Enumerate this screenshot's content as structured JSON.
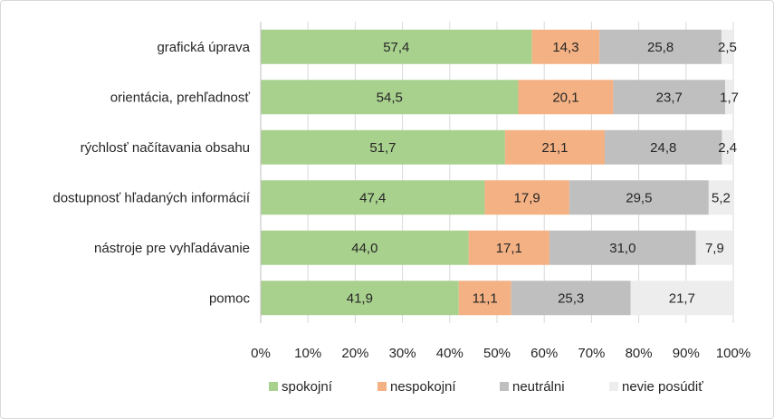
{
  "colors": {
    "spokojni": "#a9d18e",
    "nespokojni": "#f4b183",
    "neutralni": "#bfbfbf",
    "nevie": "#ededed",
    "gridline": "#d9d9d9",
    "axis": "#bfbfbf"
  },
  "chart_data": {
    "type": "bar",
    "orientation": "horizontal",
    "stacked": "percent",
    "categories": [
      "grafická úprava",
      "orientácia, prehľadnosť",
      "rýchlosť načítavania obsahu",
      "dostupnosť hľadaných informácií",
      "nástroje pre vyhľadávanie",
      "pomoc"
    ],
    "series": [
      {
        "name": "spokojní",
        "values": [
          57.4,
          54.5,
          51.7,
          47.4,
          44.0,
          41.9
        ],
        "labels": [
          "57,4",
          "54,5",
          "51,7",
          "47,4",
          "44,0",
          "41,9"
        ]
      },
      {
        "name": "nespokojní",
        "values": [
          14.3,
          20.1,
          21.1,
          17.9,
          17.1,
          11.1
        ],
        "labels": [
          "14,3",
          "20,1",
          "21,1",
          "17,9",
          "17,1",
          "11,1"
        ]
      },
      {
        "name": "neutrálni",
        "values": [
          25.8,
          23.7,
          24.8,
          29.5,
          31.0,
          25.3
        ],
        "labels": [
          "25,8",
          "23,7",
          "24,8",
          "29,5",
          "31,0",
          "25,3"
        ]
      },
      {
        "name": "nevie posúdiť",
        "values": [
          2.5,
          1.7,
          2.4,
          5.2,
          7.9,
          21.7
        ],
        "labels": [
          "2,5",
          "1,7",
          "2,4",
          "5,2",
          "7,9",
          "21,7"
        ]
      }
    ],
    "xlim": [
      0,
      100
    ],
    "x_ticks": [
      "0%",
      "10%",
      "20%",
      "30%",
      "40%",
      "50%",
      "60%",
      "70%",
      "80%",
      "90%",
      "100%"
    ],
    "grid": true,
    "legend_position": "bottom",
    "title": "",
    "xlabel": "",
    "ylabel": ""
  }
}
